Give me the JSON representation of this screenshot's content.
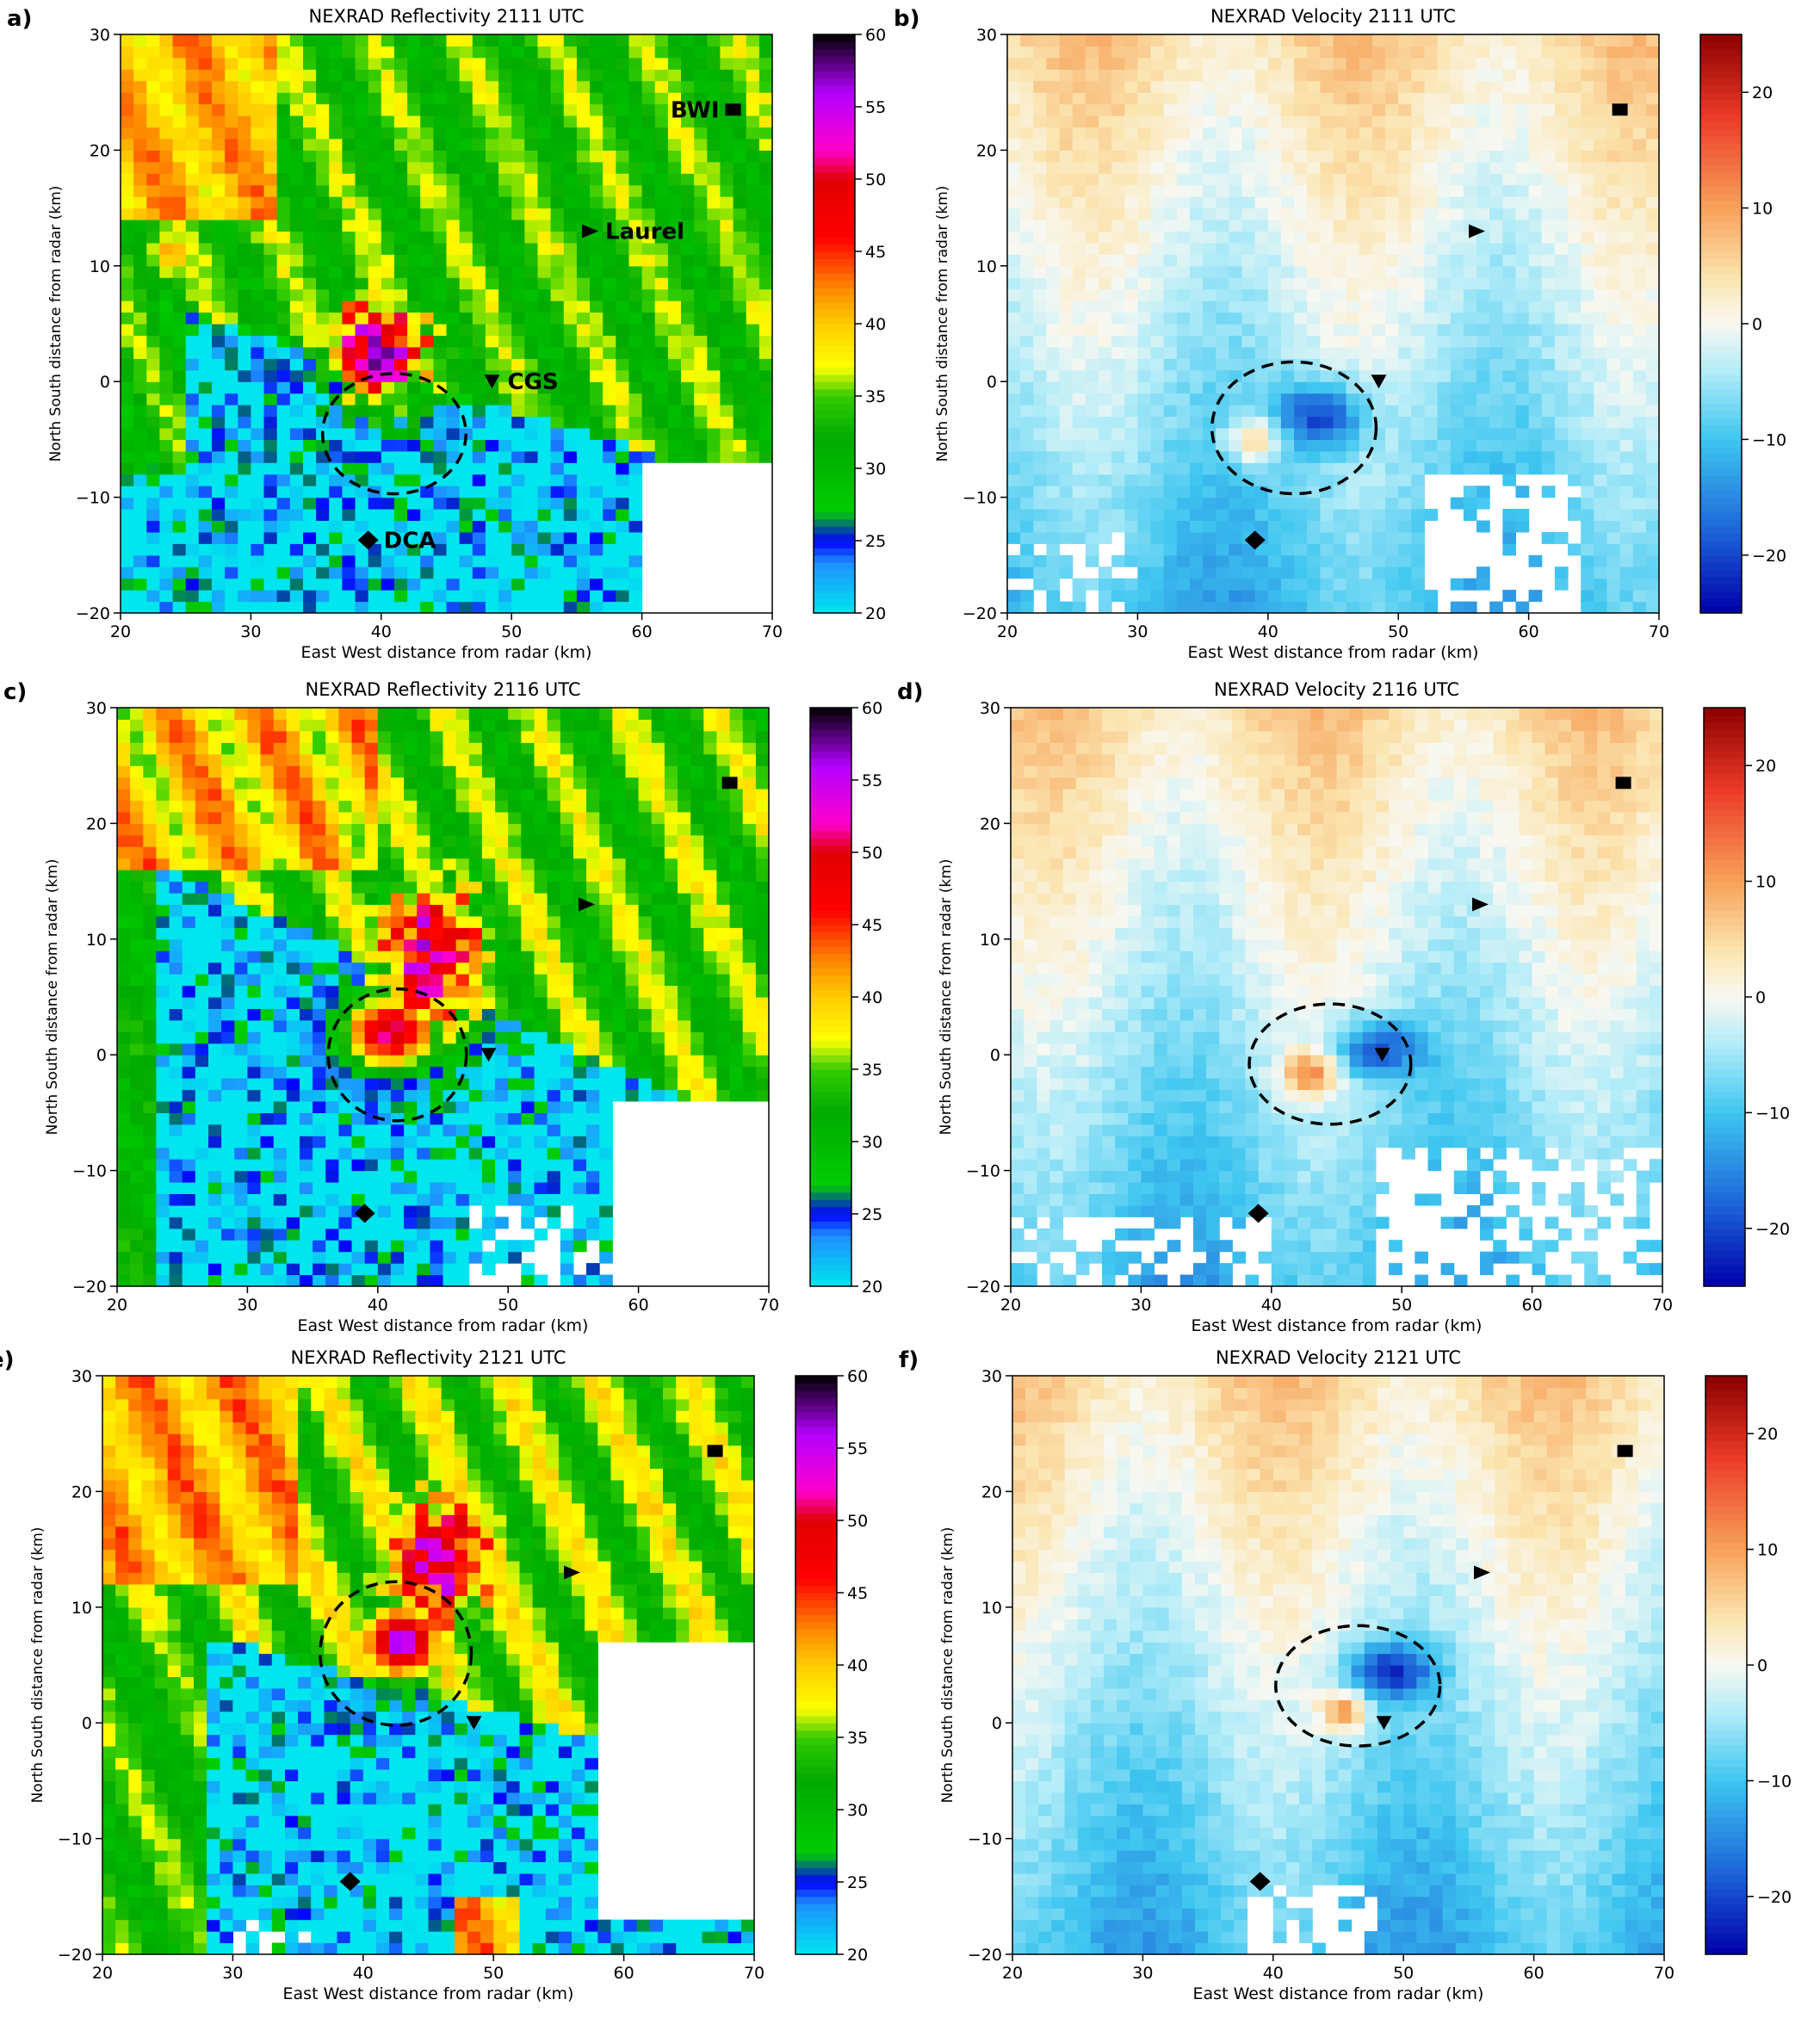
{
  "figure": {
    "panels": [
      {
        "letter": "a)",
        "kind": "reflectivity",
        "title": "NEXRAD Reflectivity 2111 UTC",
        "show_names": true,
        "circle": {
          "cx": 41,
          "cy": -4.5,
          "rx": 5.5,
          "ry": 5.2
        }
      },
      {
        "letter": "b)",
        "kind": "velocity",
        "title": "NEXRAD Velocity 2111 UTC",
        "show_names": false,
        "circle": {
          "cx": 42,
          "cy": -4,
          "rx": 6.3,
          "ry": 5.7
        }
      },
      {
        "letter": "c)",
        "kind": "reflectivity",
        "title": "NEXRAD Reflectivity 2116 UTC",
        "show_names": false,
        "circle": {
          "cx": 41.5,
          "cy": 0,
          "rx": 5.3,
          "ry": 5.7
        }
      },
      {
        "letter": "d)",
        "kind": "velocity",
        "title": "NEXRAD Velocity 2116 UTC",
        "show_names": false,
        "circle": {
          "cx": 44.5,
          "cy": -0.8,
          "rx": 6.2,
          "ry": 5.2
        }
      },
      {
        "letter": "e)",
        "kind": "reflectivity",
        "title": "NEXRAD Reflectivity 2121 UTC",
        "show_names": false,
        "circle": {
          "cx": 42.5,
          "cy": 6,
          "rx": 5.8,
          "ry": 6.2
        }
      },
      {
        "letter": "f)",
        "kind": "velocity",
        "title": "NEXRAD Velocity 2121 UTC",
        "show_names": false,
        "circle": {
          "cx": 46.5,
          "cy": 3.2,
          "rx": 6.3,
          "ry": 5.2
        }
      }
    ]
  },
  "chart_data": {
    "type": "heatmap",
    "xlabel": "East West distance from radar (km)",
    "ylabel": "North South distance from radar (km)",
    "xlim": [
      20,
      70
    ],
    "ylim": [
      -20,
      30
    ],
    "xticks": [
      "20",
      "30",
      "40",
      "50",
      "60",
      "70"
    ],
    "yticks": [
      "30",
      "20",
      "10",
      "0",
      "-10",
      "-20"
    ],
    "reflectivity_colorbar": {
      "range": [
        20,
        60
      ],
      "ticks": [
        "60",
        "55",
        "50",
        "45",
        "40",
        "35",
        "30",
        "25",
        "20"
      ],
      "stops": [
        [
          20,
          "#00e5ee"
        ],
        [
          23.5,
          "#1e90ff"
        ],
        [
          25,
          "#0000ff"
        ],
        [
          27,
          "#00cc00"
        ],
        [
          32,
          "#00aa00"
        ],
        [
          35,
          "#33cc00"
        ],
        [
          37,
          "#ffff00"
        ],
        [
          40,
          "#ffcc00"
        ],
        [
          42.5,
          "#ff8800"
        ],
        [
          46,
          "#ff0000"
        ],
        [
          50,
          "#e00000"
        ],
        [
          52,
          "#ff00cc"
        ],
        [
          56,
          "#b300ff"
        ],
        [
          60,
          "#000000"
        ]
      ]
    },
    "velocity_colorbar": {
      "range": [
        -25,
        25
      ],
      "ticks": [
        "20",
        "10",
        "0",
        "-10",
        "-20"
      ],
      "stops": [
        [
          -25,
          "#0000aa"
        ],
        [
          -18,
          "#1c63d8"
        ],
        [
          -10,
          "#3ec6f0"
        ],
        [
          -4,
          "#b3ecf8"
        ],
        [
          0,
          "#f8f8f2"
        ],
        [
          4,
          "#fbe5b0"
        ],
        [
          10,
          "#f7a25a"
        ],
        [
          18,
          "#ec3a28"
        ],
        [
          25,
          "#8b0000"
        ]
      ]
    },
    "landmarks": [
      {
        "name": "BWI",
        "x": 67,
        "y": 23.5,
        "symbol": "square"
      },
      {
        "name": "Laurel",
        "x": 56,
        "y": 13,
        "symbol": "triangle-right"
      },
      {
        "name": "CGS",
        "x": 48.5,
        "y": 0,
        "symbol": "triangle-down"
      },
      {
        "name": "DCA",
        "x": 39,
        "y": -13.7,
        "symbol": "diamond"
      }
    ]
  }
}
